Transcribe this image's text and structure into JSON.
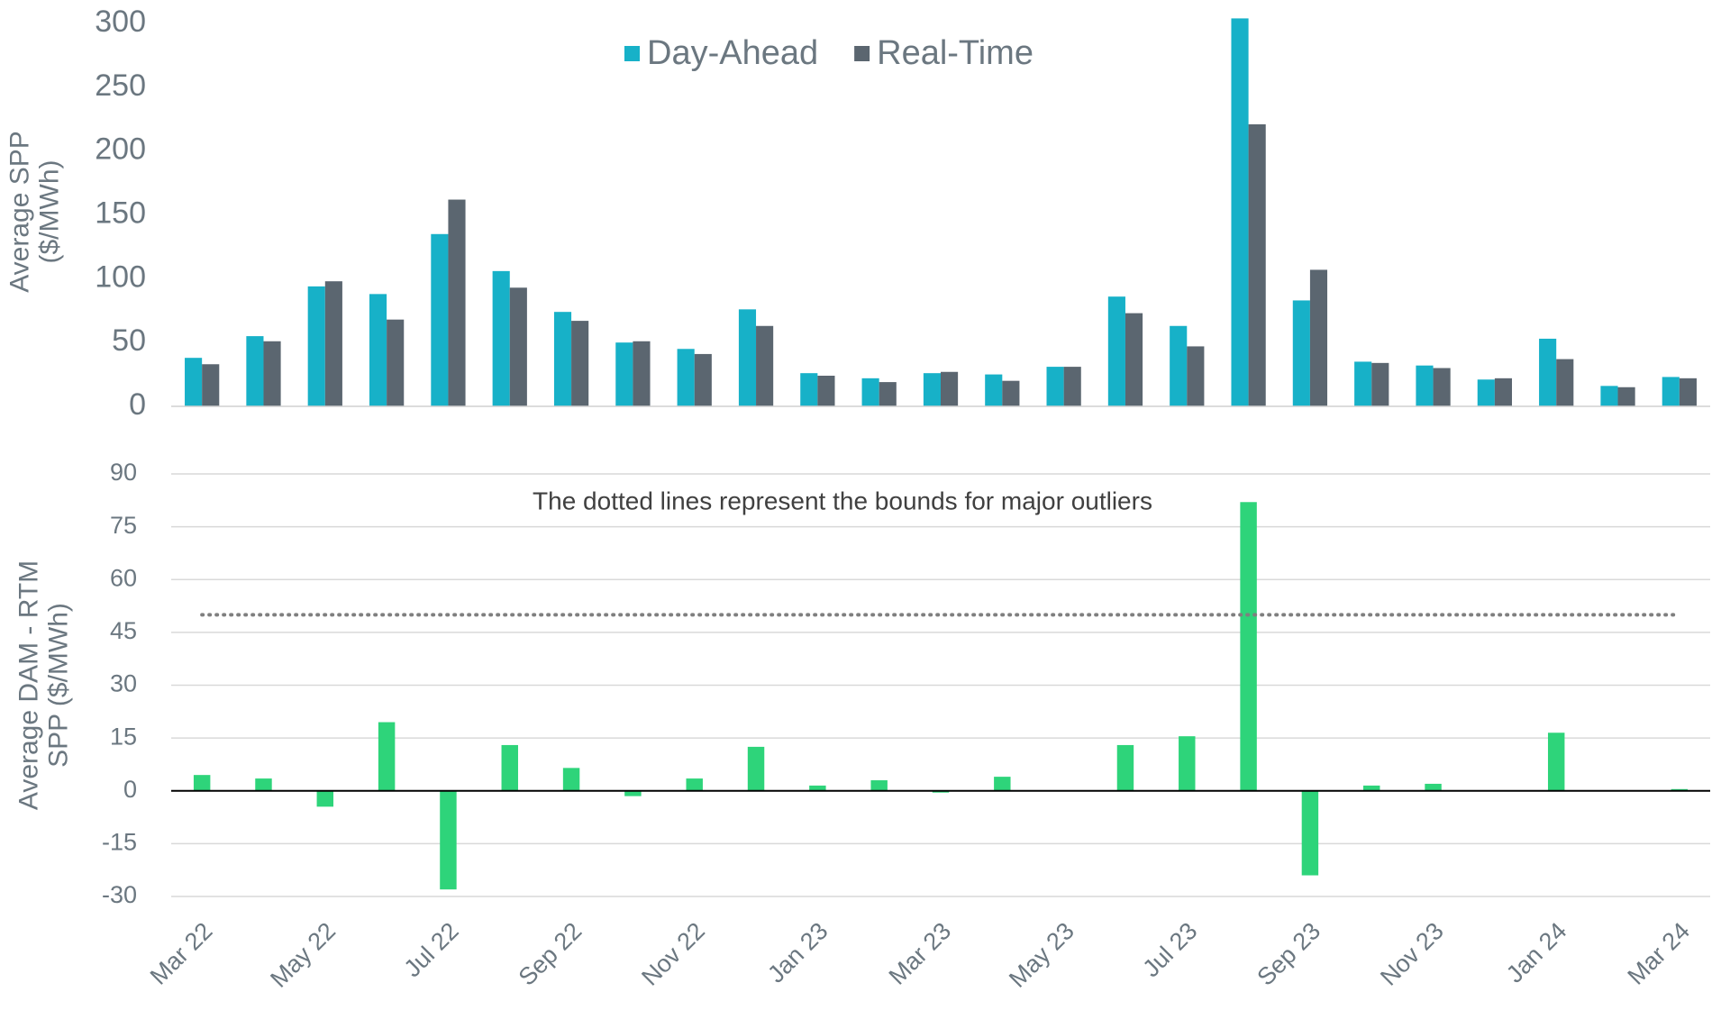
{
  "chart_data": [
    {
      "type": "bar",
      "ylabel": [
        "Average SPP",
        "($/MWh)"
      ],
      "series": [
        {
          "name": "Day-Ahead",
          "color": "#17b1c8",
          "values": [
            38,
            55,
            94,
            88,
            135,
            106,
            74,
            50,
            45,
            76,
            26,
            22,
            26,
            25,
            31,
            86,
            63,
            304,
            83,
            35,
            32,
            21,
            53,
            16,
            23
          ]
        },
        {
          "name": "Real-Time",
          "color": "#5b6670",
          "values": [
            33,
            51,
            98,
            68,
            162,
            93,
            67,
            51,
            41,
            63,
            24,
            19,
            27,
            20,
            31,
            73,
            47,
            221,
            107,
            34,
            30,
            22,
            37,
            15,
            22
          ]
        }
      ],
      "ylim": [
        0,
        305
      ],
      "yticks": [
        0,
        50,
        100,
        150,
        200,
        250,
        300
      ],
      "grid": false,
      "legend": "top"
    },
    {
      "type": "bar",
      "ylabel": [
        "Average DAM - RTM",
        "SPP ($/MWh)"
      ],
      "annotation": "The dotted lines represent the bounds for major outliers",
      "reference_lines": [
        50
      ],
      "categories": [
        "Mar 22",
        null,
        "May 22",
        null,
        "Jul 22",
        null,
        "Sep 22",
        null,
        "Nov 22",
        null,
        "Jan 23",
        null,
        "Mar 23",
        null,
        "May 23",
        null,
        "Jul 23",
        null,
        "Sep 23",
        null,
        "Nov 23",
        null,
        "Jan 24",
        null,
        "Mar 24"
      ],
      "values": [
        4.5,
        3.5,
        -4.5,
        19.5,
        -28,
        13,
        6.5,
        -1.5,
        3.5,
        12.5,
        1.5,
        3,
        -0.5,
        4,
        0,
        13,
        15.5,
        82,
        -24,
        1.5,
        2,
        0,
        16.5,
        0,
        0.5
      ],
      "color": "#2ed47a",
      "ylim": [
        -30,
        90
      ],
      "yticks": [
        -30,
        -15,
        0,
        15,
        30,
        45,
        60,
        75,
        90
      ],
      "grid": true
    }
  ]
}
